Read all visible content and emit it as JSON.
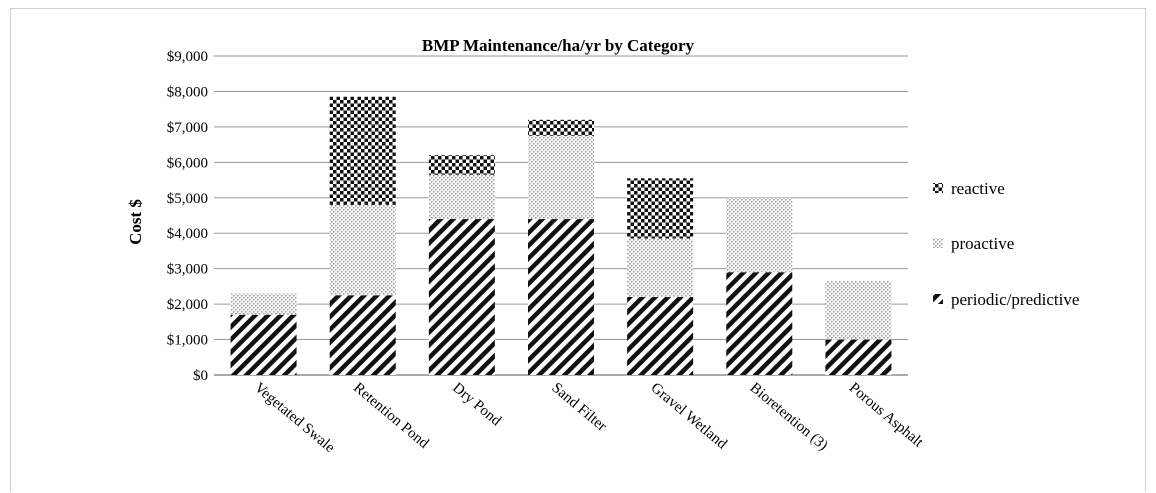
{
  "chart_data": {
    "type": "bar",
    "stacked": true,
    "title": "BMP Maintenance/ha/yr by Category",
    "xlabel": "",
    "ylabel": "Cost $",
    "ylim": [
      0,
      9000
    ],
    "yticks": [
      0,
      1000,
      2000,
      3000,
      4000,
      5000,
      6000,
      7000,
      8000,
      9000
    ],
    "ytick_labels": [
      "$0",
      "$1,000",
      "$2,000",
      "$3,000",
      "$4,000",
      "$5,000",
      "$6,000",
      "$7,000",
      "$8,000",
      "$9,000"
    ],
    "grid": "horizontal",
    "legend_position": "right",
    "categories": [
      "Vegetated Swale",
      "Retention Pond",
      "Dry Pond",
      "Sand Filter",
      "Gravel Wetland",
      "Bioretention (3)",
      "Porous Asphalt"
    ],
    "series": [
      {
        "name": "periodic/predictive",
        "pattern": "diagonal-hatch",
        "values": [
          1700,
          2250,
          4400,
          4400,
          2200,
          2900,
          1000
        ]
      },
      {
        "name": "proactive",
        "pattern": "light-dots",
        "values": [
          600,
          2550,
          1250,
          2350,
          1650,
          2100,
          1650
        ]
      },
      {
        "name": "reactive",
        "pattern": "checkerboard",
        "values": [
          0,
          3050,
          550,
          450,
          1700,
          0,
          0
        ]
      }
    ],
    "legend_order": [
      "reactive",
      "proactive",
      "periodic/predictive"
    ]
  }
}
